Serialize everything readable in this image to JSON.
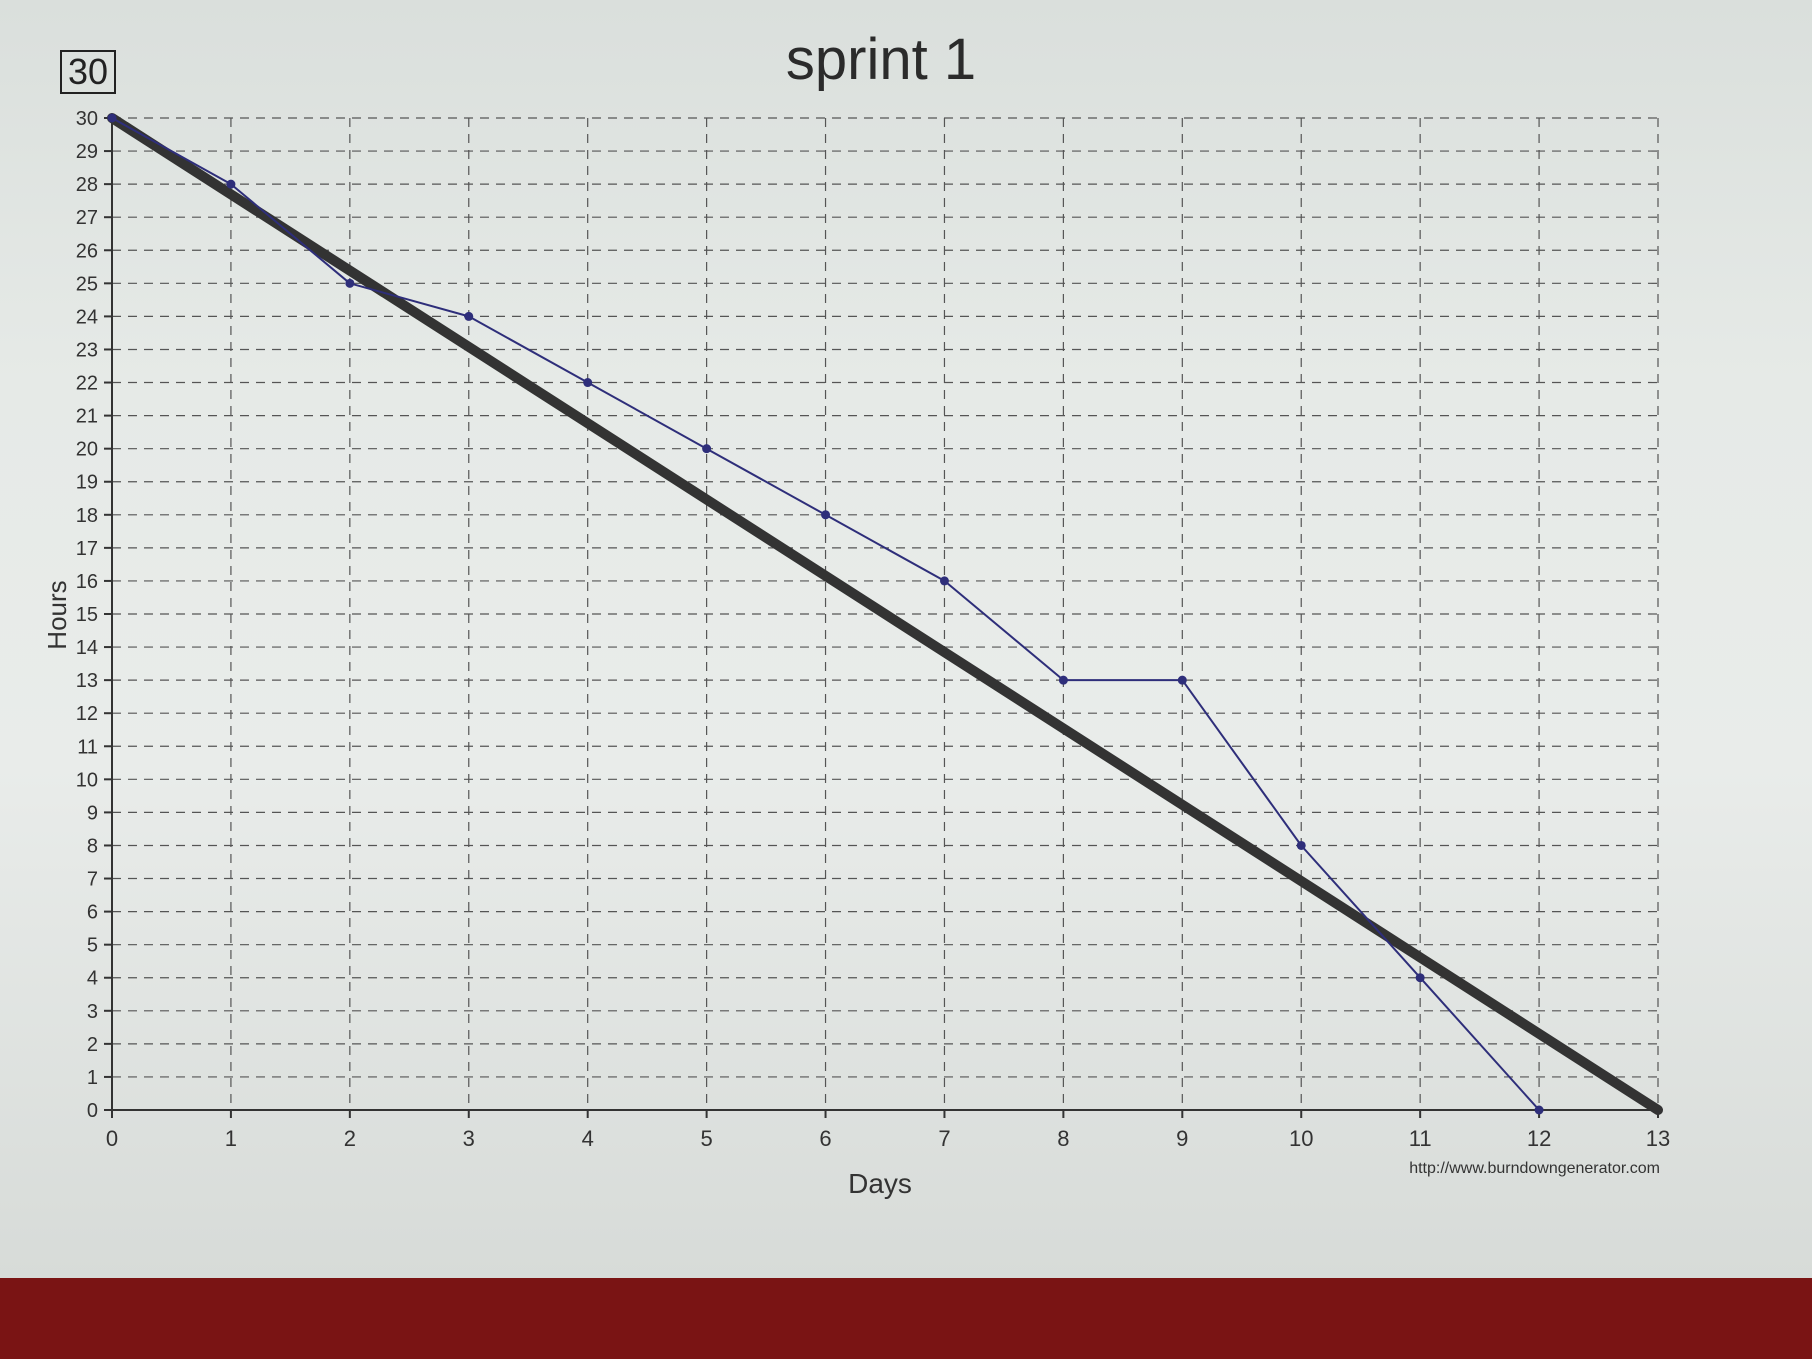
{
  "header": {
    "total_box": "30"
  },
  "chart_data": {
    "type": "line",
    "title": "sprint 1",
    "xlabel": "Days",
    "ylabel": "Hours",
    "xlim": [
      0,
      13
    ],
    "ylim": [
      0,
      30
    ],
    "x_ticks": [
      0,
      1,
      2,
      3,
      4,
      5,
      6,
      7,
      8,
      9,
      10,
      11,
      12,
      13
    ],
    "y_ticks": [
      0,
      1,
      2,
      3,
      4,
      5,
      6,
      7,
      8,
      9,
      10,
      11,
      12,
      13,
      14,
      15,
      16,
      17,
      18,
      19,
      20,
      21,
      22,
      23,
      24,
      25,
      26,
      27,
      28,
      29,
      30
    ],
    "grid": true,
    "series": [
      {
        "x": [
          0,
          13
        ],
        "y": [
          30,
          0
        ],
        "color": "#333333"
      },
      {
        "x": [
          0,
          1,
          2,
          3,
          4,
          5,
          6,
          7,
          8,
          9,
          10,
          11,
          12
        ],
        "y": [
          30,
          28,
          25,
          24,
          22,
          20,
          18,
          16,
          13,
          13,
          8,
          4,
          0
        ],
        "color": "#2e2e7a"
      }
    ],
    "source": "http://www.burndowngenerator.com"
  }
}
